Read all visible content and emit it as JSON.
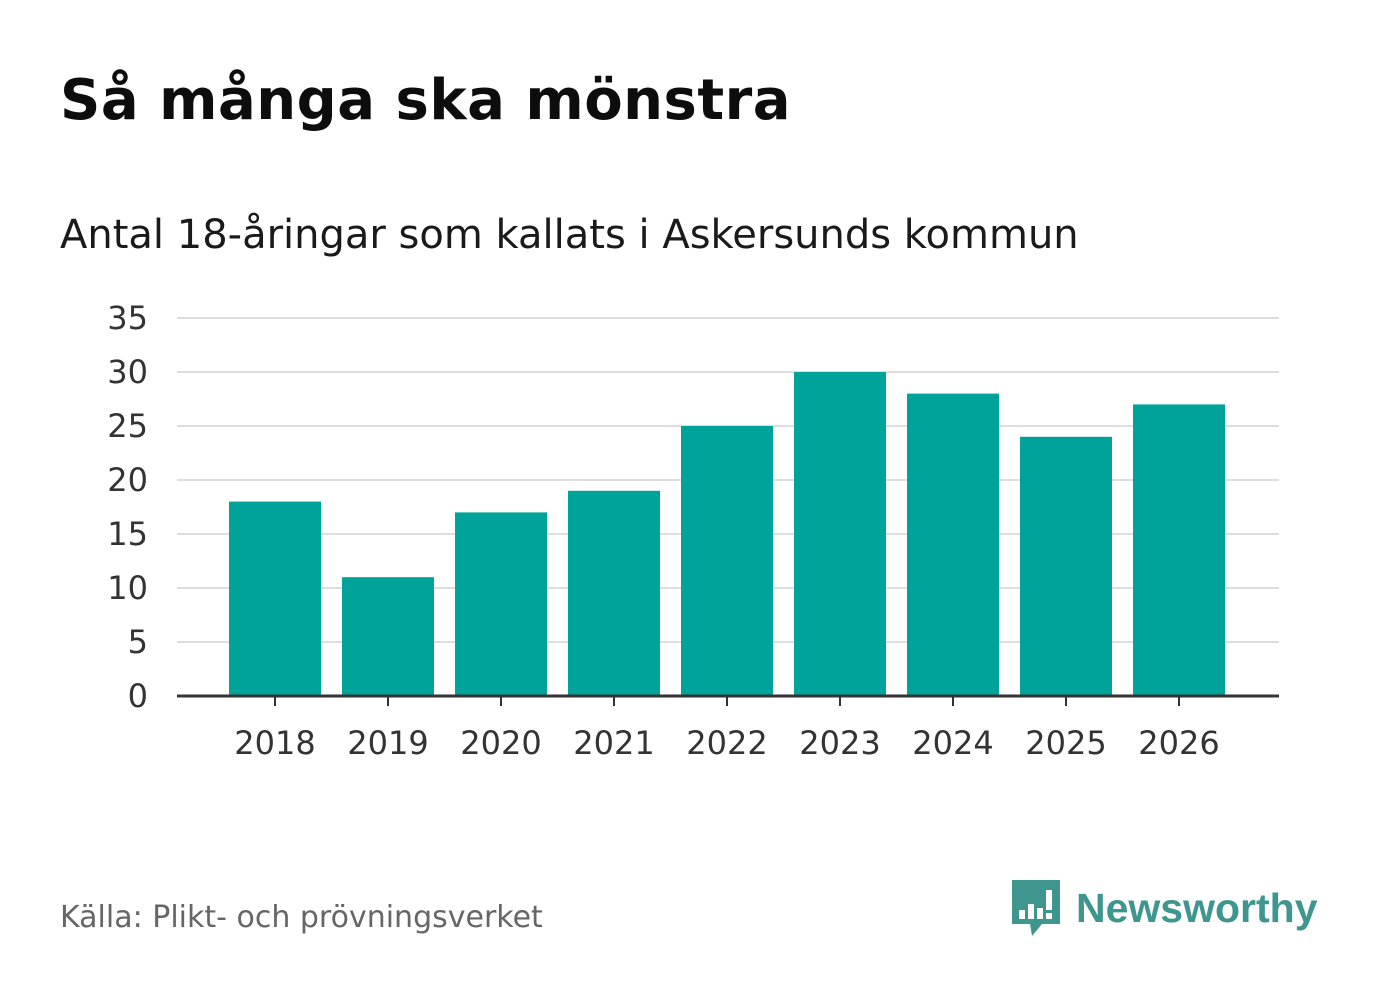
{
  "chart_data": {
    "type": "bar",
    "title": "Så många ska mönstra",
    "subtitle": "Antal 18-åringar som kallats i Askersunds kommun",
    "categories": [
      "2018",
      "2019",
      "2020",
      "2021",
      "2022",
      "2023",
      "2024",
      "2025",
      "2026"
    ],
    "values": [
      18,
      11,
      17,
      19,
      25,
      30,
      28,
      24,
      27
    ],
    "xlabel": "",
    "ylabel": "",
    "ylim": [
      0,
      35
    ],
    "yticks": [
      0,
      5,
      10,
      15,
      20,
      25,
      30,
      35
    ],
    "grid": true,
    "legend": "none",
    "bar_color": "#00a39a"
  },
  "source": "Källa: Plikt- och prövningsverket",
  "brand": {
    "name": "Newsworthy",
    "icon": "newsworthy-logo-icon",
    "color": "#3e968e"
  }
}
